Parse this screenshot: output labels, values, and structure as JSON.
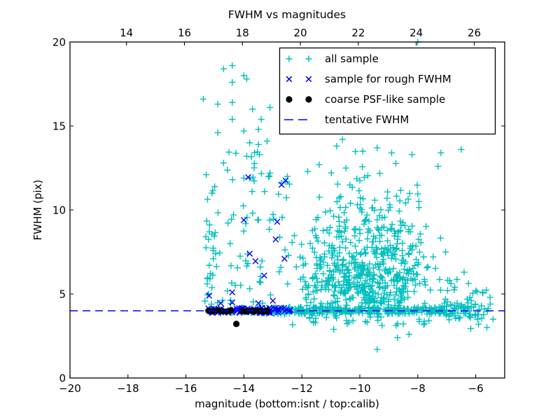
{
  "chart_data": {
    "type": "scatter",
    "title": "FWHM vs magnitudes",
    "xlabel": "magnitude (bottom:isnt / top:calib)",
    "ylabel": "FWHM (pix)",
    "grid": false,
    "x_bottom_axis": {
      "range": [
        -20,
        -5
      ],
      "ticks": [
        -20,
        -18,
        -16,
        -14,
        -12,
        -10,
        -8,
        -6
      ],
      "tick_labels": [
        "−20",
        "−18",
        "−16",
        "−14",
        "−12",
        "−10",
        "−8",
        "−6"
      ]
    },
    "x_top_axis": {
      "range": [
        12.05,
        27.05
      ],
      "ticks": [
        14,
        16,
        18,
        20,
        22,
        24,
        26
      ],
      "tick_labels": [
        "14",
        "16",
        "18",
        "20",
        "22",
        "24",
        "26"
      ]
    },
    "y_axis": {
      "range": [
        0,
        20
      ],
      "ticks": [
        0,
        5,
        10,
        15,
        20
      ],
      "tick_labels": [
        "0",
        "5",
        "10",
        "15",
        "20"
      ]
    },
    "legend": {
      "position": "upper-right-inside",
      "entries": [
        {
          "label": "all sample",
          "marker": "plus",
          "color": "#00bfbf"
        },
        {
          "label": "sample for rough FWHM",
          "marker": "x",
          "color": "#0000ff"
        },
        {
          "label": "coarse PSF-like sample",
          "marker": "dot",
          "color": "#000000"
        },
        {
          "label": "tentative FWHM",
          "marker": "dashed-line",
          "color": "#0000ff"
        }
      ]
    },
    "tentative_fwhm": 4.0,
    "series": {
      "all_sample": {
        "marker": "plus",
        "color": "#00bfbf",
        "seed": 7,
        "points": [
          [
            -14.7,
            18.4
          ],
          [
            -14.4,
            18.6
          ],
          [
            -14.0,
            18.0
          ],
          [
            -13.9,
            17.8
          ],
          [
            -14.4,
            17.6
          ],
          [
            -15.4,
            16.6
          ],
          [
            -14.9,
            16.3
          ],
          [
            -14.4,
            16.4
          ],
          [
            -13.7,
            16.0
          ],
          [
            -13.1,
            16.1
          ],
          [
            -14.4,
            15.4
          ],
          [
            -13.4,
            15.4
          ],
          [
            -13.5,
            14.8
          ],
          [
            -14.0,
            14.7
          ],
          [
            -14.9,
            14.6
          ],
          [
            -13.8,
            14.0
          ],
          [
            -13.5,
            13.9
          ],
          [
            -13.2,
            14.1
          ],
          [
            -13.9,
            13.2
          ],
          [
            -14.7,
            12.8
          ],
          [
            -15.3,
            12.1
          ],
          [
            -15.1,
            11.0
          ],
          [
            -14.0,
            11.9
          ],
          [
            -13.1,
            12.2
          ],
          [
            -12.5,
            12.0
          ],
          [
            -8.0,
            20.0
          ],
          [
            -10.6,
            14.2
          ],
          [
            -10.8,
            13.8
          ],
          [
            -9.9,
            13.5
          ],
          [
            -9.4,
            13.7
          ],
          [
            -8.9,
            13.4
          ],
          [
            -8.2,
            13.3
          ],
          [
            -7.3,
            12.6
          ],
          [
            -7.2,
            13.4
          ],
          [
            -6.5,
            13.6
          ],
          [
            -11.4,
            12.7
          ],
          [
            -11.8,
            12.3
          ],
          [
            -9.4,
            1.7
          ],
          [
            -8.7,
            2.4
          ],
          [
            -8.3,
            2.6
          ],
          [
            -10.9,
            2.9
          ],
          [
            -11.6,
            3.3
          ],
          [
            -6.4,
            6.3
          ],
          [
            -6.9,
            5.8
          ],
          [
            -5.4,
            3.5
          ],
          [
            -5.5,
            4.4
          ],
          [
            -5.9,
            3.2
          ],
          [
            -6.2,
            4.8
          ],
          [
            -5.7,
            4.1
          ],
          [
            -6.0,
            5.2
          ]
        ],
        "clusters": [
          {
            "n": 26,
            "x": {
              "u": [
                -15.35,
                -14.82
              ]
            },
            "y": {
              "u": [
                4.3,
                8.8
              ]
            }
          },
          {
            "n": 6,
            "x": {
              "u": [
                -15.35,
                -14.85
              ]
            },
            "y": {
              "u": [
                9.0,
                11.6
              ]
            }
          },
          {
            "n": 40,
            "x": {
              "u": [
                -14.75,
                -13.05
              ]
            },
            "y": {
              "u": [
                4.4,
                13.5
              ]
            }
          },
          {
            "n": 14,
            "x": {
              "u": [
                -14.7,
                -13.1
              ]
            },
            "y": {
              "u": [
                4.4,
                7.5
              ]
            }
          },
          {
            "n": 16,
            "x": {
              "u": [
                -13.05,
                -12.2
              ]
            },
            "y": {
              "u": [
                4.4,
                11.8
              ]
            }
          },
          {
            "n": 380,
            "x": {
              "g": [
                -9.75,
                1.05
              ]
            },
            "y": {
              "g": [
                5.9,
                1.5
              ]
            },
            "xmin": -12.4,
            "xmax": -6.9,
            "ymin": 4.25,
            "ymax": 13.2
          },
          {
            "n": 110,
            "x": {
              "u": [
                -11.9,
                -7.9
              ]
            },
            "y": {
              "u": [
                4.3,
                9.0
              ]
            }
          },
          {
            "n": 80,
            "x": {
              "g": [
                -9.8,
                0.9
              ]
            },
            "y": {
              "g": [
                9.5,
                1.4
              ]
            },
            "xmin": -11.5,
            "xmax": -7.9,
            "ymin": 8.4,
            "ymax": 14.1
          },
          {
            "n": 250,
            "x": {
              "u": [
                -12.62,
                -7.1
              ]
            },
            "y": {
              "u": [
                3.8,
                4.24
              ]
            }
          },
          {
            "n": 55,
            "x": {
              "u": [
                -7.1,
                -5.75
              ]
            },
            "y": {
              "u": [
                3.5,
                4.5
              ]
            }
          },
          {
            "n": 40,
            "x": {
              "u": [
                -13.6,
                -12.6
              ]
            },
            "y": {
              "u": [
                3.8,
                4.2
              ]
            }
          },
          {
            "n": 22,
            "x": {
              "u": [
                -15.3,
                -13.6
              ]
            },
            "y": {
              "u": [
                3.85,
                4.2
              ]
            }
          },
          {
            "n": 30,
            "x": {
              "u": [
                -12.5,
                -7.6
              ]
            },
            "y": {
              "u": [
                3.05,
                3.75
              ]
            }
          },
          {
            "n": 26,
            "x": {
              "u": [
                -7.1,
                -5.5
              ]
            },
            "y": {
              "u": [
                2.9,
                6.2
              ]
            }
          },
          {
            "n": 9,
            "x": {
              "u": [
                -8.6,
                -7.2
              ]
            },
            "y": {
              "u": [
                7.0,
                12.0
              ]
            }
          }
        ]
      },
      "rough_fwhm_sample": {
        "marker": "x",
        "color": "#0000ff",
        "seed": 11,
        "points": [
          [
            -13.85,
            11.95
          ],
          [
            -12.7,
            11.5
          ],
          [
            -12.56,
            11.75
          ],
          [
            -14.0,
            9.4
          ],
          [
            -12.85,
            9.3
          ],
          [
            -12.9,
            8.25
          ],
          [
            -13.8,
            7.4
          ],
          [
            -13.6,
            6.95
          ],
          [
            -12.6,
            7.1
          ],
          [
            -13.3,
            6.1
          ],
          [
            -14.4,
            5.1
          ],
          [
            -15.2,
            4.9
          ],
          [
            -14.8,
            4.45
          ],
          [
            -14.4,
            4.5
          ],
          [
            -13.5,
            4.45
          ],
          [
            -13.0,
            4.6
          ]
        ],
        "clusters": [
          {
            "n": 85,
            "x": {
              "u": [
                -15.25,
                -12.38
              ]
            },
            "y": {
              "u": [
                3.87,
                4.18
              ]
            }
          }
        ]
      },
      "coarse_psf_sample": {
        "marker": "dot",
        "color": "#000000",
        "points": [
          [
            -15.22,
            4.0
          ],
          [
            -15.08,
            3.97
          ],
          [
            -14.9,
            4.02
          ],
          [
            -14.74,
            3.98
          ],
          [
            -14.6,
            3.95
          ],
          [
            -14.45,
            4.03
          ],
          [
            -14.06,
            3.98
          ],
          [
            -13.92,
            3.96
          ],
          [
            -13.76,
            4.01
          ],
          [
            -13.63,
            3.97
          ],
          [
            -13.46,
            4.0
          ],
          [
            -13.32,
            3.97
          ],
          [
            -13.19,
            4.0
          ],
          [
            -14.26,
            3.22
          ]
        ]
      },
      "tentative_fwhm_line": {
        "style": "dashed",
        "color": "#0000ff",
        "y": 4.0
      }
    }
  }
}
